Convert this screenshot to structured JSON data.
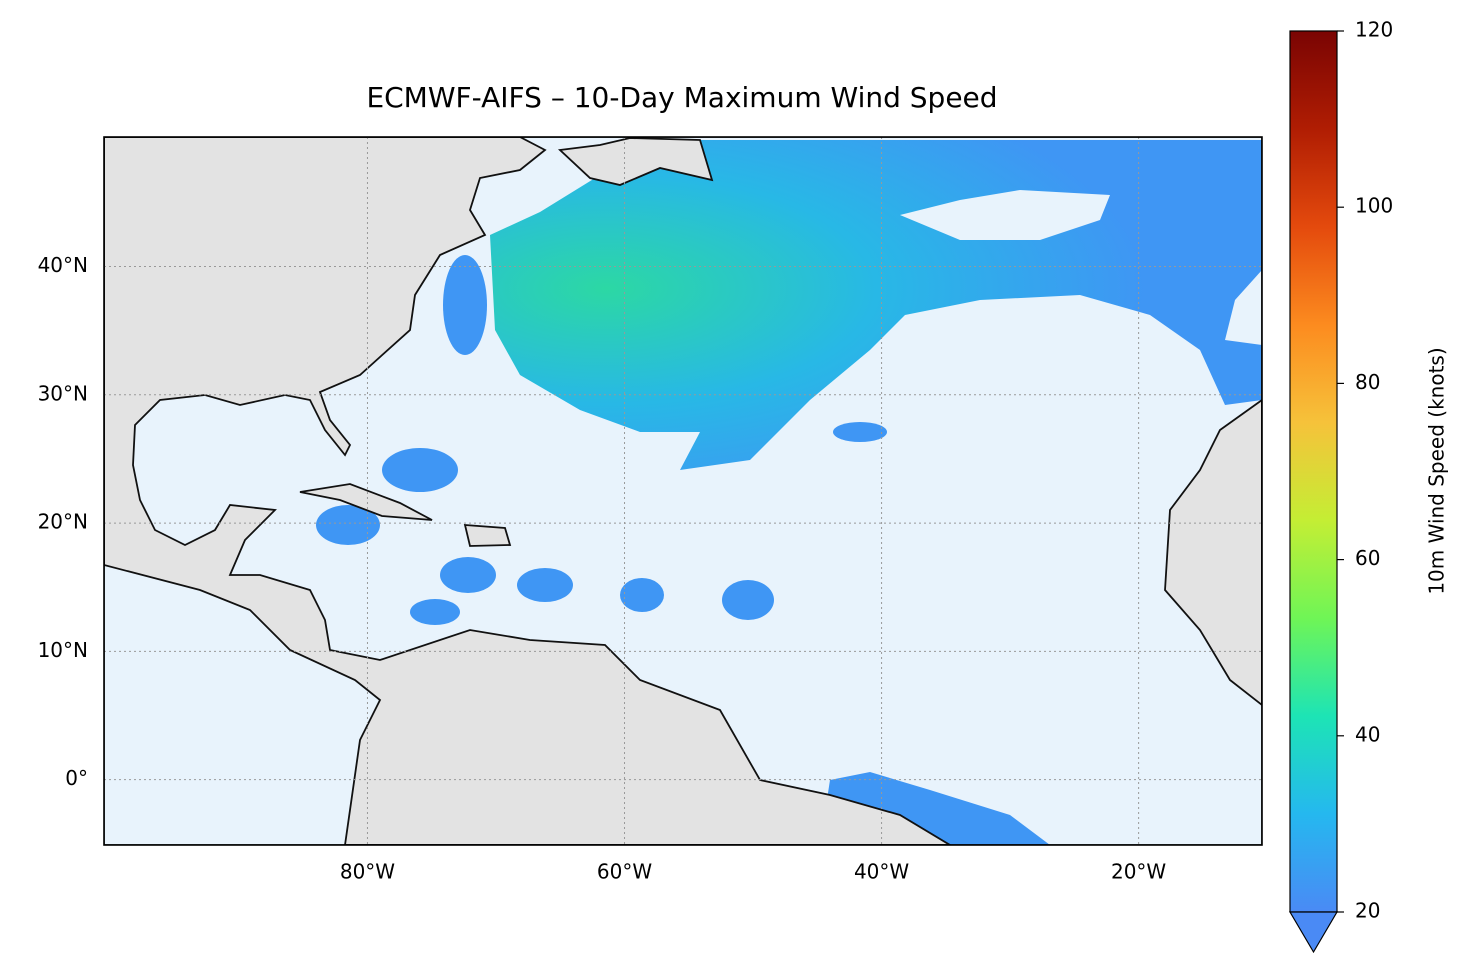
{
  "chart_data": {
    "type": "map",
    "title": "ECMWF-AIFS – 10-Day Maximum Wind Speed",
    "xlim": [
      -100.5,
      -10.4
    ],
    "ylim": [
      -5.1,
      50.1
    ],
    "xticks": [
      {
        "value": -80,
        "label": "80°W"
      },
      {
        "value": -60,
        "label": "60°W"
      },
      {
        "value": -40,
        "label": "40°W"
      },
      {
        "value": -20,
        "label": "20°W"
      }
    ],
    "yticks": [
      {
        "value": 0,
        "label": "0°"
      },
      {
        "value": 10,
        "label": "10°N"
      },
      {
        "value": 20,
        "label": "20°N"
      },
      {
        "value": 30,
        "label": "30°N"
      },
      {
        "value": 40,
        "label": "40°N"
      }
    ],
    "grid": true,
    "colorbar": {
      "label": "10m Wind Speed (knots)",
      "lim": [
        20,
        120
      ],
      "ticks": [
        20,
        40,
        60,
        80,
        100,
        120
      ],
      "colors": [
        "#4a8af5",
        "#25b8ef",
        "#1de4b5",
        "#6ff556",
        "#c4ee34",
        "#f6c23a",
        "#fc8b1f",
        "#e44a0d",
        "#b01d03",
        "#7a0403"
      ],
      "extend": "min"
    }
  }
}
